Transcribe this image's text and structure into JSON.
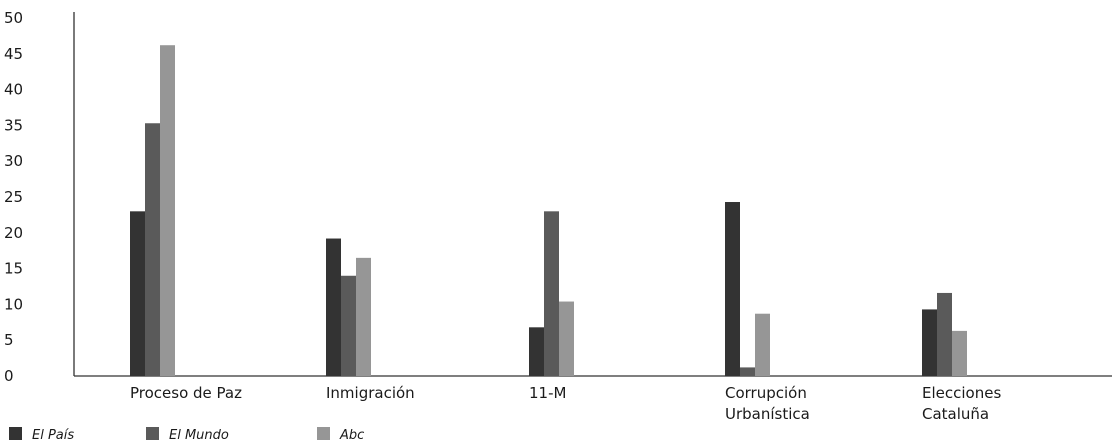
{
  "chart_data": {
    "type": "bar",
    "categories": [
      "Proceso de Paz",
      "Inmigración",
      "11-M",
      "Corrupción Urbanística",
      "Elecciones Cataluña"
    ],
    "category_lines": [
      [
        "Proceso de Paz"
      ],
      [
        "Inmigración"
      ],
      [
        "11-M"
      ],
      [
        "Corrupción",
        "Urbanística"
      ],
      [
        "Elecciones",
        "Cataluña"
      ]
    ],
    "series": [
      {
        "name": "El País",
        "color": "#333333",
        "values": [
          23,
          19.2,
          6.8,
          24.3,
          9.3
        ]
      },
      {
        "name": "El Mundo",
        "color": "#5a5a5a",
        "values": [
          35.3,
          14,
          23,
          1.2,
          11.6
        ]
      },
      {
        "name": "Abc",
        "color": "#969696",
        "values": [
          46.2,
          16.5,
          10.4,
          8.7,
          6.3
        ]
      }
    ],
    "yticks": [
      0,
      5,
      10,
      15,
      20,
      25,
      30,
      35,
      40,
      45,
      50
    ],
    "ylim": [
      0,
      50
    ],
    "grid": false,
    "legend_position": "bottom-left"
  }
}
